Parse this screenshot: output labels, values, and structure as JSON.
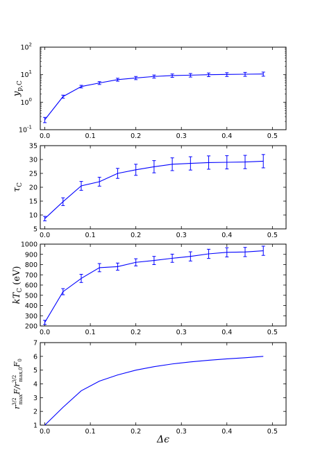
{
  "xlabel": "Δϵ",
  "line_color": "#0000ff",
  "chart_data": [
    {
      "type": "line",
      "ylabel": "y_{p,C}",
      "ylabel_main": "y",
      "ylabel_sub": "p,C",
      "yscale": "log",
      "xlim": [
        -0.01,
        0.53
      ],
      "ylim": [
        0.1,
        100
      ],
      "xticks": [
        "0.0",
        "0.1",
        "0.2",
        "0.3",
        "0.4",
        "0.5"
      ],
      "yticks": [
        "10",
        "10",
        "10",
        "10"
      ],
      "ytick_exponents": [
        "-1",
        "0",
        "1",
        "2"
      ],
      "ytick_values": [
        0.1,
        1,
        10,
        100
      ],
      "errorbars": true,
      "series": [
        {
          "x": [
            0.0,
            0.04,
            0.08,
            0.12,
            0.16,
            0.2,
            0.24,
            0.28,
            0.32,
            0.36,
            0.4,
            0.44,
            0.48
          ],
          "y": [
            0.23,
            1.6,
            3.7,
            5.0,
            6.6,
            7.6,
            8.6,
            9.3,
            9.6,
            10.0,
            10.2,
            10.4,
            10.6
          ],
          "err": [
            0.05,
            0.2,
            0.4,
            0.6,
            0.8,
            1.0,
            1.1,
            1.3,
            1.4,
            1.5,
            1.6,
            1.7,
            1.8
          ]
        }
      ]
    },
    {
      "type": "line",
      "ylabel": "τ_C",
      "ylabel_main": "τ",
      "ylabel_sub": "C",
      "yscale": "linear",
      "xlim": [
        -0.01,
        0.53
      ],
      "ylim": [
        5,
        35
      ],
      "xticks": [
        "0.0",
        "0.1",
        "0.2",
        "0.3",
        "0.4",
        "0.5"
      ],
      "yticks": [
        "5",
        "10",
        "15",
        "20",
        "25",
        "30",
        "35"
      ],
      "ytick_values": [
        5,
        10,
        15,
        20,
        25,
        30,
        35
      ],
      "errorbars": true,
      "series": [
        {
          "x": [
            0.0,
            0.04,
            0.08,
            0.12,
            0.16,
            0.2,
            0.24,
            0.28,
            0.32,
            0.36,
            0.4,
            0.44,
            0.48
          ],
          "y": [
            8.7,
            14.8,
            20.5,
            22.0,
            25.0,
            26.3,
            27.4,
            28.3,
            28.6,
            28.9,
            29.0,
            29.1,
            29.4
          ],
          "err": [
            0.8,
            1.4,
            1.6,
            1.6,
            1.8,
            2.0,
            2.2,
            2.3,
            2.4,
            2.4,
            2.4,
            2.4,
            2.4
          ]
        }
      ]
    },
    {
      "type": "line",
      "ylabel": "kT_C (eV)",
      "ylabel_main": "kT",
      "ylabel_sub": "C",
      "ylabel_suffix": " (eV)",
      "yscale": "linear",
      "xlim": [
        -0.01,
        0.53
      ],
      "ylim": [
        200,
        1000
      ],
      "xticks": [
        "0.0",
        "0.1",
        "0.2",
        "0.3",
        "0.4",
        "0.5"
      ],
      "yticks": [
        "200",
        "300",
        "400",
        "500",
        "600",
        "700",
        "800",
        "900",
        "1000"
      ],
      "ytick_values": [
        200,
        300,
        400,
        500,
        600,
        700,
        800,
        900,
        1000
      ],
      "errorbars": true,
      "series": [
        {
          "x": [
            0.0,
            0.04,
            0.08,
            0.12,
            0.16,
            0.2,
            0.24,
            0.28,
            0.32,
            0.36,
            0.4,
            0.44,
            0.48
          ],
          "y": [
            235,
            535,
            665,
            770,
            780,
            822,
            840,
            862,
            880,
            905,
            920,
            923,
            935
          ],
          "err": [
            20,
            30,
            40,
            40,
            35,
            35,
            40,
            40,
            45,
            45,
            45,
            45,
            45
          ]
        }
      ]
    },
    {
      "type": "line",
      "ylabel": "r_max^{3/2} F / r_max,0^{3/2} F_0",
      "ylabel_r1": "r",
      "ylabel_r1_sup": "3/2",
      "ylabel_r1_sub": "max",
      "ylabel_mid": "F/",
      "ylabel_r2": "r",
      "ylabel_r2_sup": "3/2",
      "ylabel_r2_sub": "max,0",
      "ylabel_F0": "F",
      "ylabel_F0_sub": "0",
      "yscale": "linear",
      "xlim": [
        -0.01,
        0.53
      ],
      "ylim": [
        1,
        7
      ],
      "xticks": [
        "0.0",
        "0.1",
        "0.2",
        "0.3",
        "0.4",
        "0.5"
      ],
      "yticks": [
        "1",
        "2",
        "3",
        "4",
        "5",
        "6",
        "7"
      ],
      "ytick_values": [
        1,
        2,
        3,
        4,
        5,
        6,
        7
      ],
      "errorbars": false,
      "series": [
        {
          "x": [
            0.0,
            0.04,
            0.08,
            0.12,
            0.16,
            0.2,
            0.24,
            0.28,
            0.32,
            0.36,
            0.4,
            0.44,
            0.48
          ],
          "y": [
            1.0,
            2.3,
            3.5,
            4.2,
            4.65,
            5.0,
            5.25,
            5.45,
            5.6,
            5.72,
            5.82,
            5.9,
            6.0
          ]
        }
      ]
    }
  ]
}
